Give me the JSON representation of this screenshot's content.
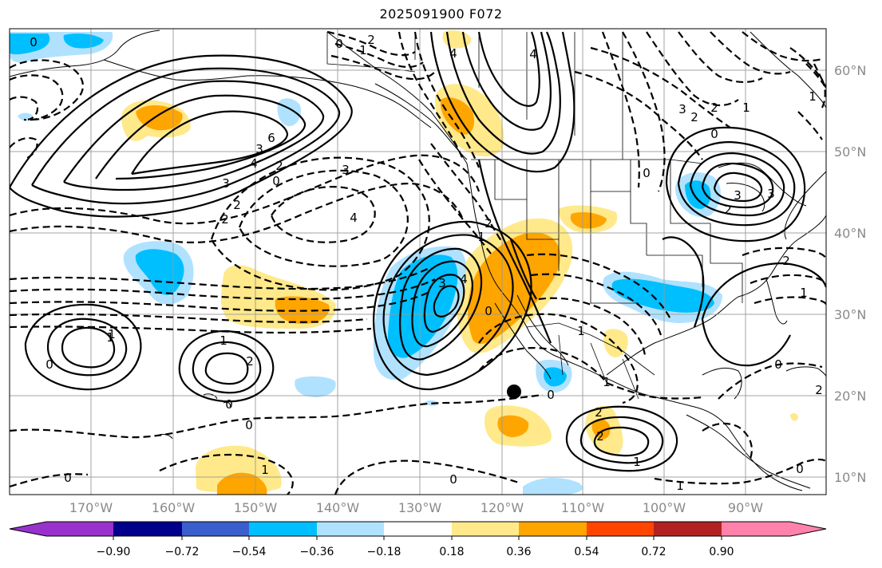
{
  "title": "2025091900 F072",
  "lat_labels": [
    "60°N",
    "50°N",
    "40°N",
    "30°N",
    "20°N",
    "10°N"
  ],
  "lon_labels": [
    "170°W",
    "160°W",
    "150°W",
    "140°W",
    "130°W",
    "120°W",
    "110°W",
    "100°W",
    "90°W"
  ],
  "colorbar": {
    "tick_labels": [
      "−0.90",
      "−0.72",
      "−0.54",
      "−0.36",
      "−0.18",
      "0.18",
      "0.36",
      "0.54",
      "0.72",
      "0.90"
    ],
    "colors": [
      "#9932cc",
      "#00008b",
      "#3a5fcd",
      "#00bfff",
      "#b0e2ff",
      "#ffffff",
      "#ffe98a",
      "#ffa500",
      "#ff4500",
      "#b22222",
      "#ff82ab"
    ]
  },
  "contour_labels": [
    "0",
    "2",
    "1",
    "0",
    "4",
    "6",
    "3",
    "4",
    "2",
    "0",
    "3",
    "2",
    "2",
    "3",
    "4",
    "3",
    "4",
    "1",
    "2",
    "0",
    "4",
    "3",
    "2",
    "2",
    "1",
    "0",
    "3",
    "0",
    "3",
    "2",
    "2",
    "1",
    "1",
    "1",
    "2",
    "0",
    "0",
    "1",
    "0",
    "0",
    "1",
    "0",
    "1",
    "2",
    "2",
    "2",
    "1",
    "1",
    "0",
    "0",
    "0",
    "1",
    "1"
  ],
  "colors": {
    "land_line": "#000000",
    "grid": "#9a9a9a",
    "marker": "#000000"
  }
}
